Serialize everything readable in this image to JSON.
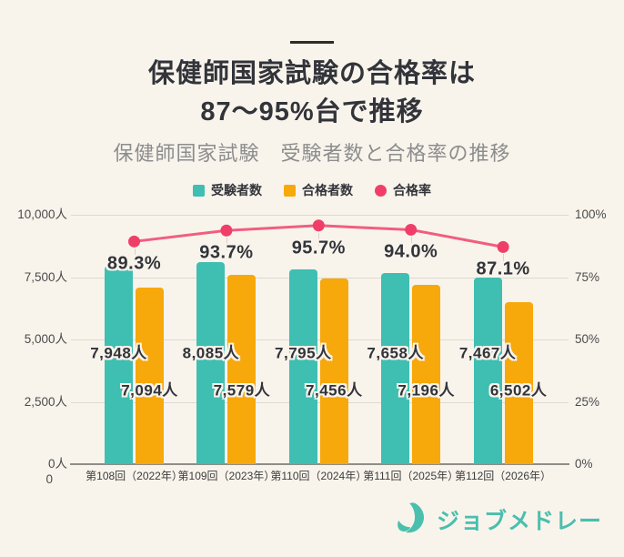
{
  "header": {
    "title_line1": "保健師国家試験の合格率は",
    "title_line2": "87〜95%台で推移",
    "subtitle": "保健師国家試験　受験者数と合格率の推移"
  },
  "legend": [
    {
      "label": "受験者数",
      "color": "#3FBEB2",
      "shape": "square"
    },
    {
      "label": "合格者数",
      "color": "#F7A80B",
      "shape": "square"
    },
    {
      "label": "合格率",
      "color": "#EF3F68",
      "shape": "circle"
    }
  ],
  "chart_data": {
    "type": "bar+line",
    "title": "保健師国家試験　受験者数と合格率の推移",
    "categories": [
      "第108回（2022年）",
      "第109回（2023年）",
      "第110回（2024年）",
      "第111回（2025年）",
      "第112回（2026年）"
    ],
    "series": [
      {
        "name": "受験者数",
        "type": "bar",
        "axis": "left",
        "color": "#3FBEB2",
        "unit": "人",
        "values": [
          7948,
          8085,
          7795,
          7658,
          7467
        ]
      },
      {
        "name": "合格者数",
        "type": "bar",
        "axis": "left",
        "color": "#F7A80B",
        "unit": "人",
        "values": [
          7094,
          7579,
          7456,
          7196,
          6502
        ]
      },
      {
        "name": "合格率",
        "type": "line",
        "axis": "right",
        "color": "#F15D80",
        "dot_color": "#EF3F68",
        "unit": "%",
        "values": [
          89.3,
          93.7,
          95.7,
          94.0,
          87.1
        ]
      }
    ],
    "left_axis": {
      "ticks": [
        {
          "value": 10000,
          "label": "10,000人"
        },
        {
          "value": 7500,
          "label": "7,500人"
        },
        {
          "value": 5000,
          "label": "5,000人"
        },
        {
          "value": 2500,
          "label": "2,500人"
        },
        {
          "value": 0,
          "label": "0人"
        }
      ],
      "origin_extra_label": "0"
    },
    "right_axis": {
      "ticks": [
        {
          "value": 100,
          "label": "100%"
        },
        {
          "value": 75,
          "label": "75%"
        },
        {
          "value": 50,
          "label": "50%"
        },
        {
          "value": 25,
          "label": "25%"
        },
        {
          "value": 0,
          "label": "0%"
        }
      ]
    },
    "ylim_left": [
      0,
      10000
    ],
    "ylim_right": [
      0,
      100
    ],
    "grid": true,
    "legend_position": "top"
  },
  "footer": {
    "logo_text": "ジョブメドレー",
    "logo_color": "#4ABFAD"
  }
}
